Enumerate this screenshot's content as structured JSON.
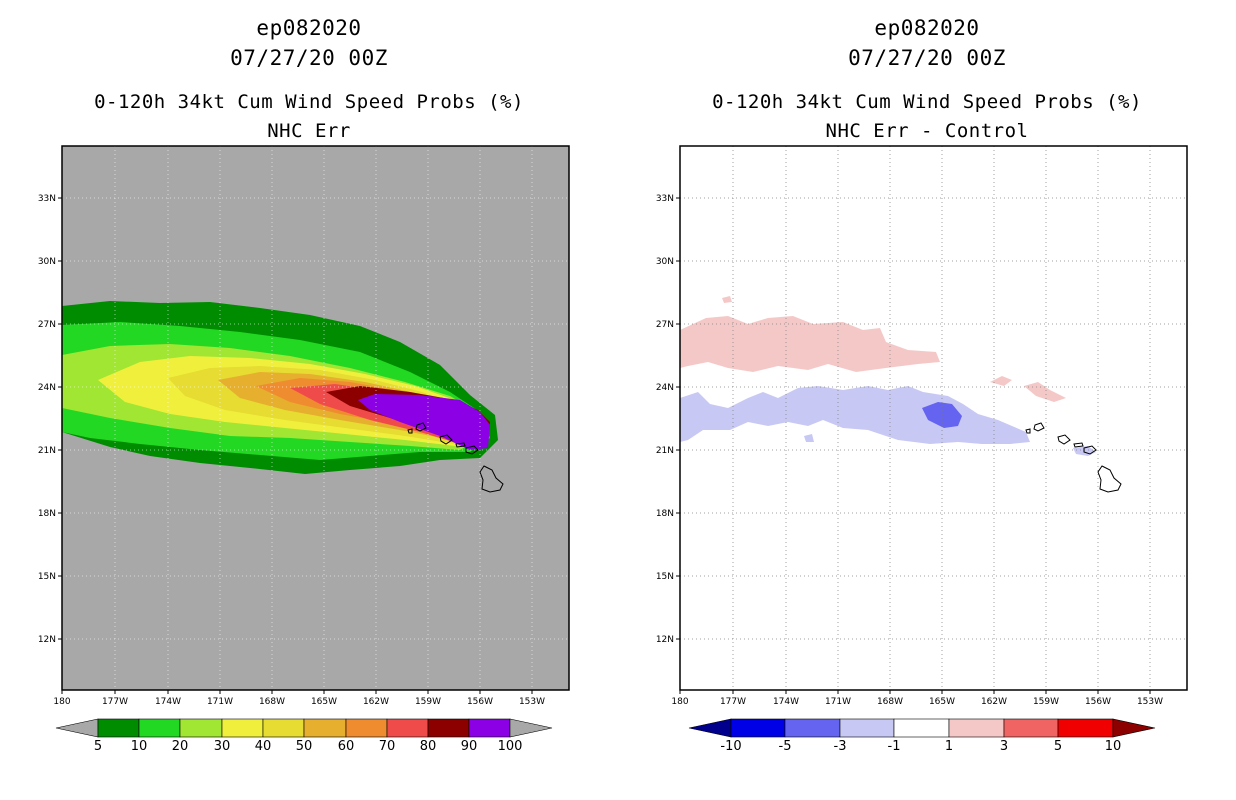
{
  "colors": {
    "land_bg_left": "#a8a8a8",
    "prob": [
      "#008c00",
      "#22d822",
      "#a0e632",
      "#f0f03c",
      "#e6dc32",
      "#e6af2d",
      "#ef8c2f",
      "#f04b4b",
      "#8c0000",
      "#8c00e6"
    ],
    "diff": [
      "#00008c",
      "#0000e6",
      "#6464f0",
      "#c8c8f5",
      "#ffffff",
      "#f5c8c8",
      "#f06464",
      "#f00000",
      "#8c0000"
    ]
  },
  "left": {
    "storm_id": "ep082020",
    "datetime": "07/27/20 00Z",
    "product": "0-120h 34kt Cum Wind Speed Probs (%)",
    "subtitle": "NHC Err",
    "lat_labels": [
      "33N",
      "30N",
      "27N",
      "24N",
      "21N",
      "18N",
      "15N",
      "12N"
    ],
    "lon_labels": [
      "180",
      "177W",
      "174W",
      "171W",
      "168W",
      "165W",
      "162W",
      "159W",
      "156W",
      "153W"
    ],
    "colorbar_labels": [
      "5",
      "10",
      "20",
      "30",
      "40",
      "50",
      "60",
      "70",
      "80",
      "90",
      "100"
    ]
  },
  "right": {
    "storm_id": "ep082020",
    "datetime": "07/27/20 00Z",
    "product": "0-120h 34kt Cum Wind Speed Probs (%)",
    "subtitle": "NHC Err - Control",
    "lat_labels": [
      "33N",
      "30N",
      "27N",
      "24N",
      "21N",
      "18N",
      "15N",
      "12N"
    ],
    "lon_labels": [
      "180",
      "177W",
      "174W",
      "171W",
      "168W",
      "165W",
      "162W",
      "159W",
      "156W",
      "153W"
    ],
    "colorbar_labels": [
      "-10",
      "-5",
      "-3",
      "-1",
      "1",
      "3",
      "5",
      "10"
    ]
  }
}
